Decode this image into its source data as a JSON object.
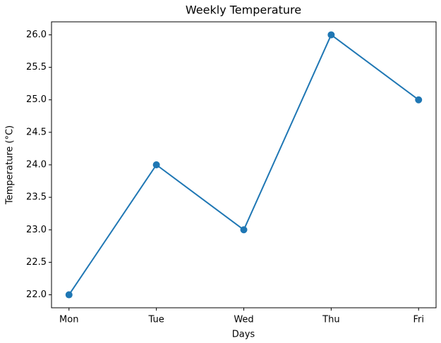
{
  "chart_data": {
    "type": "line",
    "title": "Weekly Temperature",
    "x_label": "Days",
    "y_label": "Temperature (°C)",
    "categories": [
      "Mon",
      "Tue",
      "Wed",
      "Thu",
      "Fri"
    ],
    "values": [
      22,
      24,
      23,
      26,
      25
    ],
    "color": "#1f77b4",
    "ylim": [
      21.8,
      26.2
    ],
    "yticks": [
      {
        "value": 22,
        "label": "22.0"
      },
      22.5,
      {
        "value": 23,
        "label": "23.0"
      },
      23.5,
      {
        "value": 24,
        "label": "24.0"
      },
      24.5,
      {
        "value": 25,
        "label": "25.0"
      },
      25.5,
      {
        "value": 26,
        "label": "26.0"
      }
    ],
    "grid": false
  }
}
